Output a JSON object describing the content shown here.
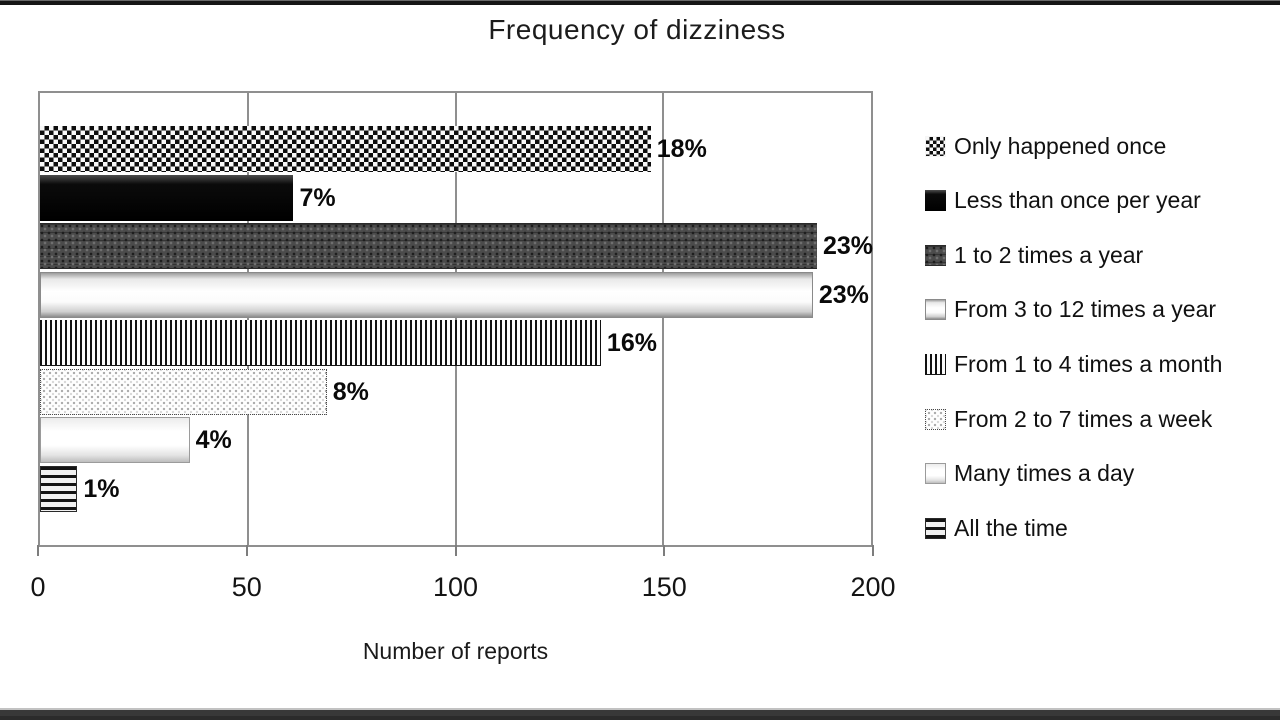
{
  "chart_data": {
    "type": "bar",
    "orientation": "horizontal",
    "title": "Frequency of dizziness",
    "xlabel": "Number of reports",
    "xlim": [
      0,
      200
    ],
    "x_ticks": [
      0,
      50,
      100,
      150,
      200
    ],
    "grid": true,
    "legend_position": "right",
    "series": [
      {
        "name": "Only happened once",
        "value": 147,
        "percent": 18,
        "pct_label": "18%",
        "pattern": "checker"
      },
      {
        "name": "Less than once per year",
        "value": 61,
        "percent": 7,
        "pct_label": "7%",
        "pattern": "solid-black"
      },
      {
        "name": "1 to 2 times a year",
        "value": 187,
        "percent": 23,
        "pct_label": "23%",
        "pattern": "dark-speckle"
      },
      {
        "name": "From 3 to 12 times a year",
        "value": 186,
        "percent": 23,
        "pct_label": "23%",
        "pattern": "silver-bevel"
      },
      {
        "name": "From 1 to 4 times a month",
        "value": 135,
        "percent": 16,
        "pct_label": "16%",
        "pattern": "v-stripes"
      },
      {
        "name": "From 2 to 7 times a week",
        "value": 69,
        "percent": 8,
        "pct_label": "8%",
        "pattern": "light-dots"
      },
      {
        "name": "Many times a day",
        "value": 36,
        "percent": 4,
        "pct_label": "4%",
        "pattern": "white-bevel"
      },
      {
        "name": "All the time",
        "value": 9,
        "percent": 1,
        "pct_label": "1%",
        "pattern": "h-stripes"
      }
    ],
    "colors": {
      "frame": "#8f8f8f",
      "text": "#1a1a1a",
      "label": "#0a0a0a"
    }
  }
}
